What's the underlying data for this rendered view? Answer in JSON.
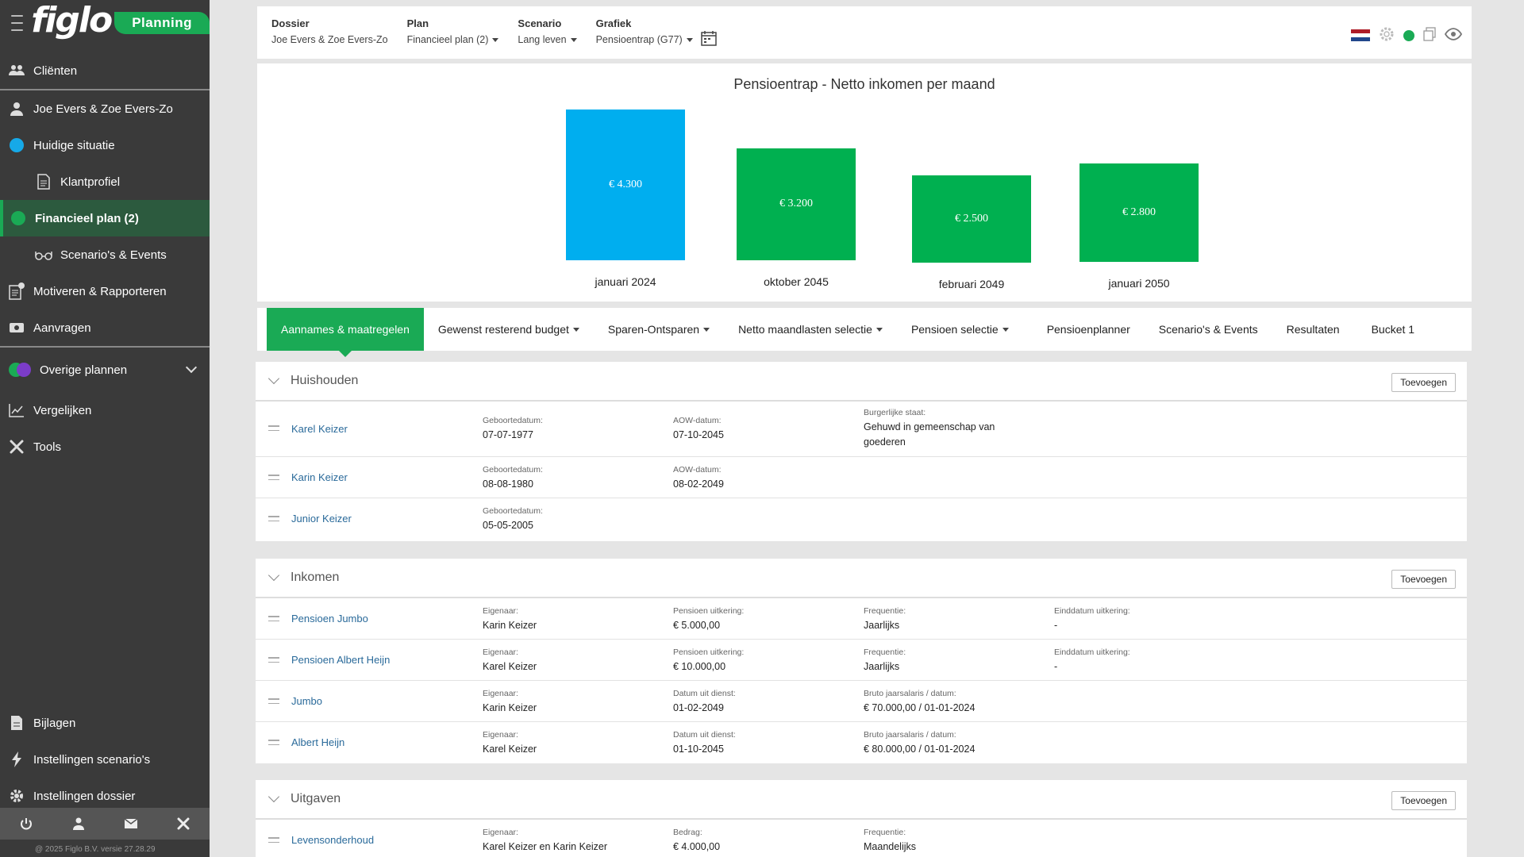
{
  "sidebar": {
    "brand": "figlo",
    "badge": "Planning",
    "items": [
      {
        "label": "Cliënten"
      },
      {
        "label": "Joe Evers & Zoe Evers-Zo"
      },
      {
        "label": "Huidige situatie"
      },
      {
        "label": "Klantprofiel"
      },
      {
        "label": "Financieel plan (2)"
      },
      {
        "label": "Scenario's & Events"
      },
      {
        "label": "Motiveren & Rapporteren"
      },
      {
        "label": "Aanvragen"
      },
      {
        "label": "Overige plannen"
      },
      {
        "label": "Vergelijken"
      },
      {
        "label": "Tools"
      }
    ],
    "bottom_items": [
      {
        "label": "Bijlagen"
      },
      {
        "label": "Instellingen scenario's"
      },
      {
        "label": "Instellingen dossier"
      }
    ],
    "copyright": "@ 2025 Figlo B.V. versie 27.28.29"
  },
  "header": {
    "dossier_label": "Dossier",
    "dossier_value": "Joe Evers & Zoe Evers-Zo",
    "plan_label": "Plan",
    "plan_value": "Financieel plan (2)",
    "scenario_label": "Scenario",
    "scenario_value": "Lang leven",
    "grafiek_label": "Grafiek",
    "grafiek_value": "Pensioentrap (G77)"
  },
  "chart_data": {
    "type": "bar",
    "title": "Pensioentrap - Netto inkomen per maand",
    "categories": [
      "januari 2024",
      "oktober 2045",
      "februari 2049",
      "januari 2050"
    ],
    "values": [
      4300,
      3200,
      2500,
      2800
    ],
    "value_labels": [
      "€ 4.300",
      "€ 3.200",
      "€ 2.500",
      "€ 2.800"
    ],
    "colors": [
      "#00aeef",
      "#00b050",
      "#00b050",
      "#00b050"
    ]
  },
  "tabs": [
    {
      "label": "Aannames & maatregelen"
    },
    {
      "label": "Gewenst resterend budget"
    },
    {
      "label": "Sparen-Ontsparen"
    },
    {
      "label": "Netto maandlasten selectie"
    },
    {
      "label": "Pensioen selectie"
    },
    {
      "label": "Pensioenplanner"
    },
    {
      "label": "Scenario's & Events"
    },
    {
      "label": "Resultaten"
    },
    {
      "label": "Bucket 1"
    }
  ],
  "add_label": "Toevoegen",
  "huishouden": {
    "title": "Huishouden",
    "rows": [
      {
        "name": "Karel Keizer",
        "f1l": "Geboortedatum:",
        "f1v": "07-07-1977",
        "f2l": "AOW-datum:",
        "f2v": "07-10-2045",
        "f3l": "Burgerlijke staat:",
        "f3v1": "Gehuwd in gemeenschap van",
        "f3v2": "goederen"
      },
      {
        "name": "Karin Keizer",
        "f1l": "Geboortedatum:",
        "f1v": "08-08-1980",
        "f2l": "AOW-datum:",
        "f2v": "08-02-2049"
      },
      {
        "name": "Junior Keizer",
        "f1l": "Geboortedatum:",
        "f1v": "05-05-2005"
      }
    ]
  },
  "inkomen": {
    "title": "Inkomen",
    "rows": [
      {
        "name": "Pensioen Jumbo",
        "f1l": "Eigenaar:",
        "f1v": "Karin Keizer",
        "f2l": "Pensioen uitkering:",
        "f2v": "€ 5.000,00",
        "f3l": "Frequentie:",
        "f3v": "Jaarlijks",
        "f4l": "Einddatum uitkering:",
        "f4v": "-"
      },
      {
        "name": "Pensioen Albert Heijn",
        "f1l": "Eigenaar:",
        "f1v": "Karel Keizer",
        "f2l": "Pensioen uitkering:",
        "f2v": "€ 10.000,00",
        "f3l": "Frequentie:",
        "f3v": "Jaarlijks",
        "f4l": "Einddatum uitkering:",
        "f4v": "-"
      },
      {
        "name": "Jumbo",
        "f1l": "Eigenaar:",
        "f1v": "Karin Keizer",
        "f2l": "Datum uit dienst:",
        "f2v": "01-02-2049",
        "f3l": "Bruto jaarsalaris / datum:",
        "f3v": "€ 70.000,00 / 01-01-2024"
      },
      {
        "name": "Albert Heijn",
        "f1l": "Eigenaar:",
        "f1v": "Karel Keizer",
        "f2l": "Datum uit dienst:",
        "f2v": "01-10-2045",
        "f3l": "Bruto jaarsalaris / datum:",
        "f3v": "€ 80.000,00 / 01-01-2024"
      }
    ]
  },
  "uitgaven": {
    "title": "Uitgaven",
    "rows": [
      {
        "name": "Levensonderhoud",
        "f1l": "Eigenaar:",
        "f1v": "Karel Keizer en Karin Keizer",
        "f2l": "Bedrag:",
        "f2v": "€ 4.000,00",
        "f3l": "Frequentie:",
        "f3v": "Maandelijks"
      }
    ]
  }
}
